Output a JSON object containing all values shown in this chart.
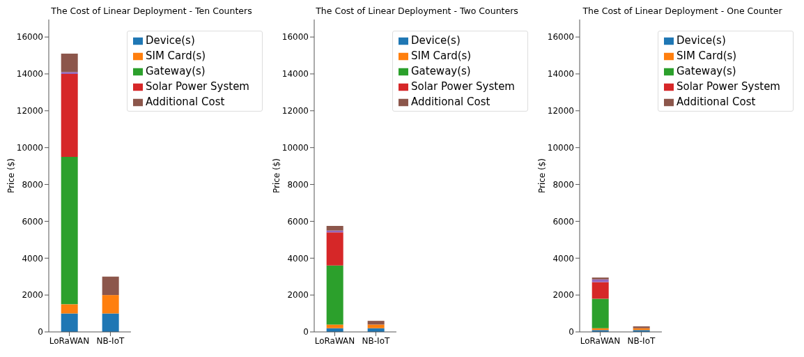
{
  "chart_data": [
    {
      "type": "bar",
      "title": "The Cost of Linear Deployment - Ten Counters",
      "ylabel": "Price ($)",
      "categories": [
        "LoRaWAN",
        "NB-IoT"
      ],
      "stacked": true,
      "ylim": [
        0,
        16950
      ],
      "yticks": [
        0,
        2000,
        4000,
        6000,
        8000,
        10000,
        12000,
        14000,
        16000
      ],
      "grid": false,
      "legend": "top right",
      "series": [
        {
          "name": "Device(s)",
          "color": "#1f77b4",
          "values": [
            1000,
            1000
          ]
        },
        {
          "name": "SIM Card(s)",
          "color": "#ff7f0e",
          "values": [
            500,
            1000
          ]
        },
        {
          "name": "Gateway(s)",
          "color": "#2ca02c",
          "values": [
            8000,
            0
          ]
        },
        {
          "name": "Solar Power System",
          "color": "#d62728",
          "values": [
            4500,
            0
          ]
        },
        {
          "color": "#9467bd",
          "values": [
            100,
            0
          ]
        },
        {
          "name": "Additional Cost",
          "color": "#8c564b",
          "values": [
            1000,
            1000
          ]
        }
      ]
    },
    {
      "type": "bar",
      "title": "The Cost of Linear Deployment - Two Counters",
      "ylabel": "Price ($)",
      "categories": [
        "LoRaWAN",
        "NB-IoT"
      ],
      "stacked": true,
      "ylim": [
        0,
        16950
      ],
      "yticks": [
        0,
        2000,
        4000,
        6000,
        8000,
        10000,
        12000,
        14000,
        16000
      ],
      "grid": false,
      "legend": "top right",
      "series": [
        {
          "name": "Device(s)",
          "color": "#1f77b4",
          "values": [
            200,
            200
          ]
        },
        {
          "name": "SIM Card(s)",
          "color": "#ff7f0e",
          "values": [
            200,
            200
          ]
        },
        {
          "name": "Gateway(s)",
          "color": "#2ca02c",
          "values": [
            3200,
            0
          ]
        },
        {
          "name": "Solar Power System",
          "color": "#d62728",
          "values": [
            1800,
            0
          ]
        },
        {
          "color": "#9467bd",
          "values": [
            100,
            0
          ]
        },
        {
          "name": "Additional Cost",
          "color": "#8c564b",
          "values": [
            250,
            200
          ]
        }
      ]
    },
    {
      "type": "bar",
      "title": "The Cost of Linear Deployment - One Counter",
      "ylabel": "Price ($)",
      "categories": [
        "LoRaWAN",
        "NB-IoT"
      ],
      "stacked": true,
      "ylim": [
        0,
        16950
      ],
      "yticks": [
        0,
        2000,
        4000,
        6000,
        8000,
        10000,
        12000,
        14000,
        16000
      ],
      "grid": false,
      "legend": "top right",
      "series": [
        {
          "name": "Device(s)",
          "color": "#1f77b4",
          "values": [
            100,
            100
          ]
        },
        {
          "name": "SIM Card(s)",
          "color": "#ff7f0e",
          "values": [
            100,
            100
          ]
        },
        {
          "name": "Gateway(s)",
          "color": "#2ca02c",
          "values": [
            1600,
            0
          ]
        },
        {
          "name": "Solar Power System",
          "color": "#d62728",
          "values": [
            900,
            0
          ]
        },
        {
          "color": "#9467bd",
          "values": [
            150,
            0
          ]
        },
        {
          "name": "Additional Cost",
          "color": "#8c564b",
          "values": [
            100,
            100
          ]
        }
      ]
    }
  ]
}
